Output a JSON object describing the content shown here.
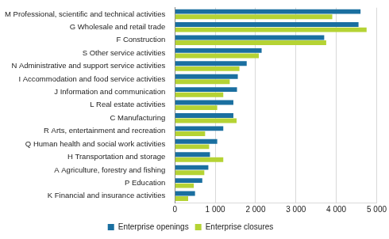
{
  "chart_data": {
    "type": "bar",
    "orientation": "horizontal",
    "categories": [
      "M Professional, scientific and technical activities",
      "G Wholesale and retail trade",
      "F Construction",
      "S Other service activities",
      "N Administrative and support service activities",
      "I Accommodation and food service activities",
      "J Information and communication",
      "L Real estate activities",
      "C Manufacturing",
      "R Arts, entertainment and recreation",
      "Q Human health and social work activities",
      "H Transportation and storage",
      "A Agriculture, forestry and fishing",
      "P Education",
      "K Financial and insurance activities"
    ],
    "series": [
      {
        "name": "Enterprise openings",
        "color": "#1a6fa0",
        "values": [
          4600,
          4550,
          3700,
          2150,
          1780,
          1560,
          1540,
          1450,
          1450,
          1200,
          1050,
          870,
          830,
          680,
          500
        ]
      },
      {
        "name": "Enterprise closures",
        "color": "#b5d334",
        "values": [
          3900,
          4750,
          3750,
          2080,
          1600,
          1360,
          1200,
          1050,
          1530,
          750,
          850,
          1200,
          730,
          470,
          330
        ]
      }
    ],
    "xlim": [
      0,
      5000
    ],
    "xticks": [
      0,
      {
        "value": 1000,
        "label": "1 000"
      },
      {
        "value": 2000,
        "label": "2 000"
      },
      {
        "value": 3000,
        "label": "3 000"
      },
      {
        "value": 4000,
        "label": "4 000"
      },
      {
        "value": 5000,
        "label": "5 000"
      }
    ],
    "grid": true,
    "legend": "bottom"
  }
}
